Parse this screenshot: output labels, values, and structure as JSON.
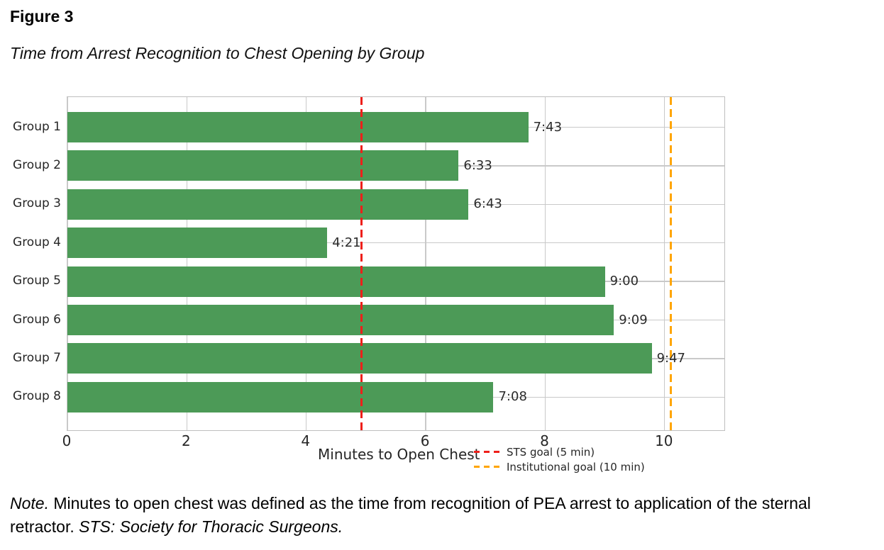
{
  "figure": {
    "label": "Figure 3",
    "title": "Time from Arrest Recognition to Chest Opening by Group"
  },
  "chart_data": {
    "type": "bar",
    "orientation": "horizontal",
    "title": "Time from Arrest Recognition to Chest Opening by Group",
    "categories": [
      "Group 1",
      "Group 2",
      "Group 3",
      "Group 4",
      "Group 5",
      "Group 6",
      "Group 7",
      "Group 8"
    ],
    "values_minutes": [
      7.7167,
      6.55,
      6.7167,
      4.35,
      9.0,
      9.15,
      9.7833,
      7.1333
    ],
    "value_labels": [
      "7:43",
      "6:33",
      "6:43",
      "4:21",
      "9:00",
      "9:09",
      "9:47",
      "7:08"
    ],
    "xlabel": "Minutes to Open Chest",
    "ylabel": "",
    "xticks": [
      0,
      2,
      4,
      6,
      8,
      10
    ],
    "xlim": [
      0,
      11
    ],
    "grid": true,
    "bar_color": "#4c9a57",
    "reference_lines": [
      {
        "label": "STS goal (5 min)",
        "goal_minutes": 5,
        "plot_position": 4.92,
        "color": "#ee1f1a",
        "style": "dashed"
      },
      {
        "label": "Institutional goal (10 min)",
        "goal_minutes": 10,
        "plot_position": 10.1,
        "color": "#ffa500",
        "style": "dashed"
      }
    ],
    "legend_position": "below-axis-right"
  },
  "note": {
    "lead_italic": "Note.",
    "body": " Minutes to open chest was defined as the time from recognition of PEA arrest to application of the sternal retractor. ",
    "tail_italic": "STS: Society for Thoracic Surgeons."
  },
  "colors": {
    "bar_green": "#4c9a57",
    "sts_red": "#ee1f1a",
    "institutional_orange": "#ffa500",
    "gridline_gray": "#c9c9c9",
    "plot_border_gray": "#bfbfbf",
    "text_dark": "#262626"
  }
}
